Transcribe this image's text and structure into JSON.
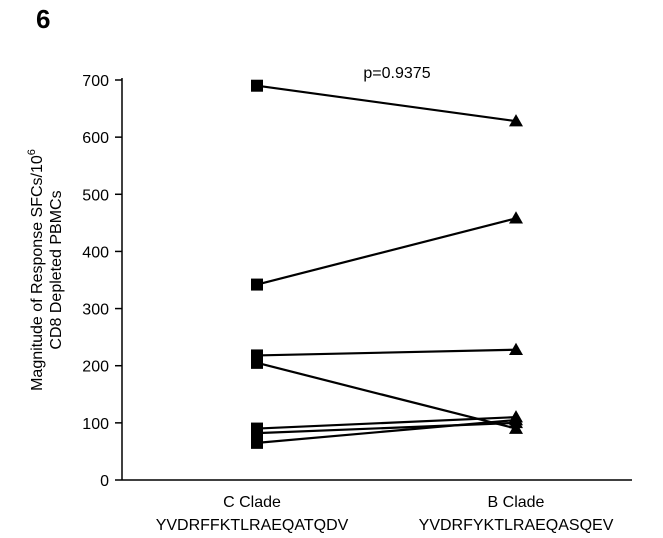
{
  "panel_label": "6",
  "chart_data": {
    "type": "line",
    "categories": [
      "C Clade",
      "B Clade"
    ],
    "category_sublabels": [
      "YVDRFFKTLRAEQATQDV",
      "YVDRFYKTLRAEQASQEV"
    ],
    "ylabel_lines": [
      "Magnitude of Response SFCs/10",
      "CD8 Depleted PBMCs"
    ],
    "ylabel_superscript": "6",
    "ylim": [
      0,
      700
    ],
    "yticks": [
      0,
      100,
      200,
      300,
      400,
      500,
      600,
      700
    ],
    "grid": false,
    "legend": "none",
    "annotation": "p=0.9375",
    "markers": {
      "C Clade": "square",
      "B Clade": "triangle"
    },
    "pairs": [
      {
        "c": 690,
        "b": 628
      },
      {
        "c": 342,
        "b": 458
      },
      {
        "c": 218,
        "b": 228
      },
      {
        "c": 205,
        "b": 90
      },
      {
        "c": 90,
        "b": 110
      },
      {
        "c": 82,
        "b": 100
      },
      {
        "c": 65,
        "b": 105
      }
    ]
  }
}
